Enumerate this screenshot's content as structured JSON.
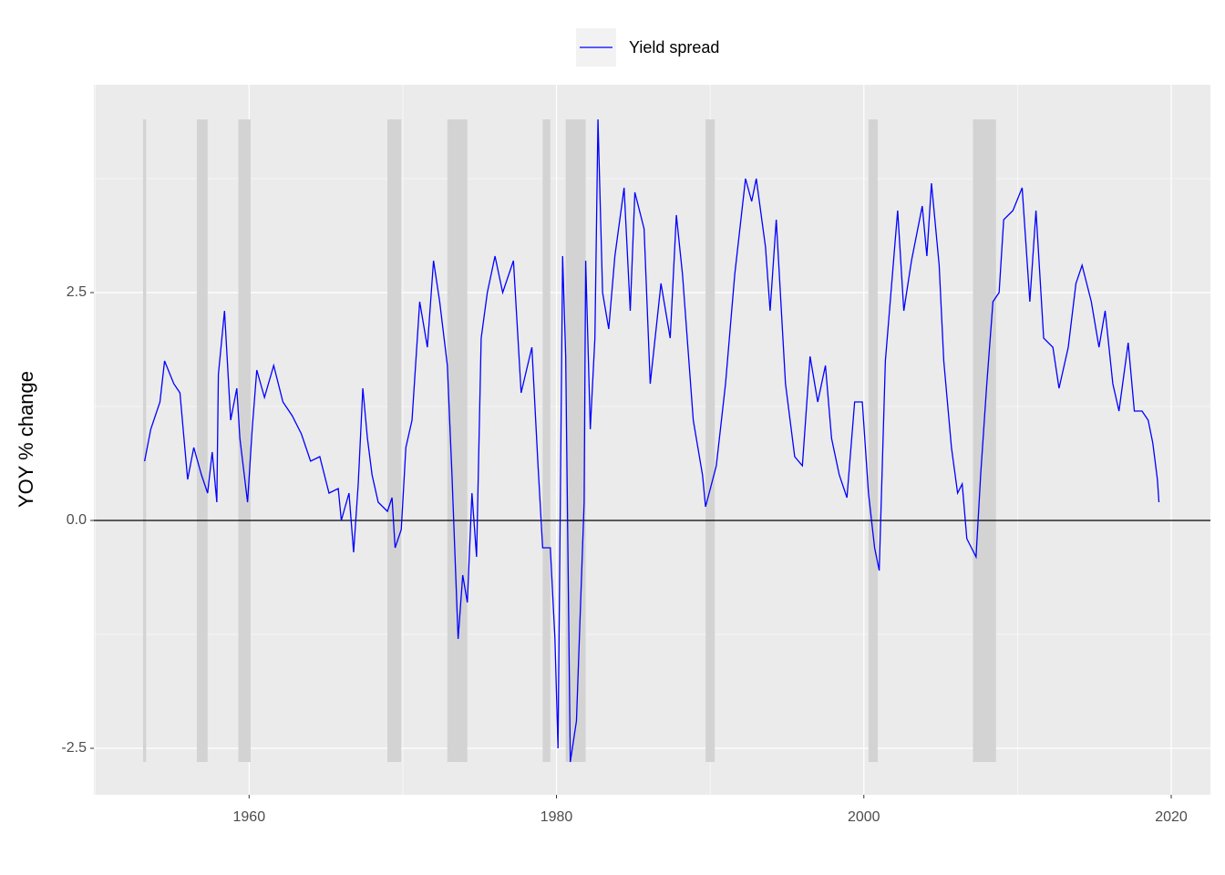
{
  "chart_data": {
    "type": "line",
    "ylabel": "YOY % change",
    "legend": "top",
    "grid": true,
    "xlim": [
      1949.9,
      2022.55
    ],
    "ylim": [
      -3.01,
      4.78
    ],
    "xticks": [
      1960,
      1980,
      2000,
      2020
    ],
    "yticks": [
      -2.5,
      {
        "value": 0,
        "label": "0.0"
      },
      2.5
    ],
    "hline": 0,
    "recessions": [
      [
        1953.1,
        1953.3
      ],
      [
        1956.6,
        1957.3
      ],
      [
        1959.3,
        1960.1
      ],
      [
        1969.0,
        1969.9
      ],
      [
        1972.9,
        1974.2
      ],
      [
        1979.1,
        1979.6
      ],
      [
        1980.6,
        1981.9
      ],
      [
        1989.7,
        1990.3
      ],
      [
        2000.3,
        2000.9
      ],
      [
        2007.1,
        2008.6
      ]
    ],
    "x": [
      1953.2,
      1953.6,
      1954.2,
      1954.5,
      1955.1,
      1955.5,
      1956.0,
      1956.4,
      1956.9,
      1957.3,
      1957.6,
      1957.9,
      1958.0,
      1958.4,
      1958.8,
      1959.2,
      1959.4,
      1959.9,
      1960.2,
      1960.5,
      1961.0,
      1961.6,
      1962.2,
      1962.8,
      1963.4,
      1964.0,
      1964.6,
      1965.2,
      1965.8,
      1966.0,
      1966.5,
      1966.8,
      1967.1,
      1967.4,
      1967.7,
      1968.0,
      1968.4,
      1969.0,
      1969.3,
      1969.5,
      1969.9,
      1970.2,
      1970.6,
      1971.1,
      1971.6,
      1972.0,
      1972.4,
      1972.9,
      1973.2,
      1973.6,
      1973.9,
      1974.2,
      1974.5,
      1974.8,
      1975.1,
      1975.5,
      1976.0,
      1976.5,
      1977.2,
      1977.7,
      1978.4,
      1978.8,
      1979.1,
      1979.6,
      1979.9,
      1980.1,
      1980.4,
      1980.6,
      1980.9,
      1981.3,
      1981.8,
      1981.9,
      1982.2,
      1982.5,
      1982.7,
      1983.0,
      1983.4,
      1983.8,
      1984.4,
      1984.8,
      1985.1,
      1985.7,
      1986.1,
      1986.8,
      1987.4,
      1987.8,
      1988.2,
      1988.9,
      1989.5,
      1989.7,
      1990.4,
      1991.0,
      1991.6,
      1992.3,
      1992.7,
      1993.0,
      1993.6,
      1993.9,
      1994.3,
      1994.9,
      1995.5,
      1996.0,
      1996.5,
      1997.0,
      1997.5,
      1997.9,
      1998.4,
      1998.9,
      1999.4,
      1999.9,
      2000.3,
      2000.7,
      2001.0,
      2001.4,
      2002.2,
      2002.6,
      2003.1,
      2003.8,
      2004.1,
      2004.4,
      2004.9,
      2005.2,
      2005.7,
      2006.1,
      2006.4,
      2006.7,
      2007.3,
      2007.6,
      2008.0,
      2008.4,
      2008.8,
      2009.1,
      2009.7,
      2010.3,
      2010.8,
      2011.2,
      2011.7,
      2012.3,
      2012.7,
      2013.3,
      2013.8,
      2014.2,
      2014.8,
      2015.3,
      2015.7,
      2016.2,
      2016.6,
      2017.2,
      2017.6,
      2018.1,
      2018.5,
      2018.8,
      2019.1,
      2019.2
    ],
    "series": [
      {
        "name": "Yield spread",
        "color": "#0000ff",
        "values": [
          0.65,
          1.0,
          1.3,
          1.75,
          1.5,
          1.4,
          0.45,
          0.8,
          0.5,
          0.3,
          0.75,
          0.2,
          1.6,
          2.3,
          1.1,
          1.45,
          0.9,
          0.2,
          1.0,
          1.65,
          1.35,
          1.7,
          1.3,
          1.15,
          0.95,
          0.65,
          0.7,
          0.3,
          0.35,
          0.0,
          0.3,
          -0.35,
          0.4,
          1.45,
          0.9,
          0.5,
          0.2,
          0.1,
          0.25,
          -0.3,
          -0.1,
          0.8,
          1.1,
          2.4,
          1.9,
          2.85,
          2.4,
          1.7,
          0.5,
          -1.3,
          -0.6,
          -0.9,
          0.3,
          -0.4,
          2.0,
          2.5,
          2.9,
          2.5,
          2.85,
          1.4,
          1.9,
          0.6,
          -0.3,
          -0.3,
          -1.3,
          -2.5,
          2.9,
          1.8,
          -2.65,
          -2.2,
          0.2,
          2.85,
          1.0,
          2.0,
          4.4,
          2.5,
          2.1,
          2.9,
          3.65,
          2.3,
          3.6,
          3.2,
          1.5,
          2.6,
          2.0,
          3.35,
          2.7,
          1.1,
          0.5,
          0.15,
          0.6,
          1.5,
          2.7,
          3.75,
          3.5,
          3.75,
          3.0,
          2.3,
          3.3,
          1.5,
          0.7,
          0.6,
          1.8,
          1.3,
          1.7,
          0.9,
          0.5,
          0.25,
          1.3,
          1.3,
          0.3,
          -0.3,
          -0.55,
          1.75,
          3.4,
          2.3,
          2.85,
          3.45,
          2.9,
          3.7,
          2.8,
          1.75,
          0.8,
          0.3,
          0.4,
          -0.2,
          -0.4,
          0.5,
          1.5,
          2.4,
          2.5,
          3.3,
          3.4,
          3.65,
          2.4,
          3.4,
          2.0,
          1.9,
          1.45,
          1.9,
          2.6,
          2.8,
          2.4,
          1.9,
          2.3,
          1.5,
          1.2,
          1.95,
          1.2,
          1.2,
          1.1,
          0.85,
          0.45,
          0.2
        ]
      }
    ]
  }
}
